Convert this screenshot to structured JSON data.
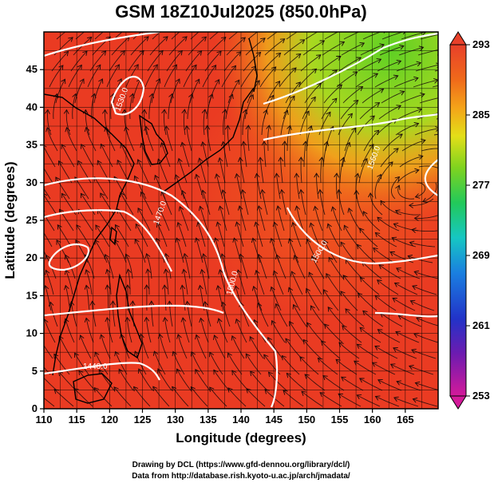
{
  "title": "GSM 18Z10Jul2025 (850.0hPa)",
  "x_axis": {
    "label": "Longitude (degrees)",
    "ticks": [
      "110",
      "115",
      "120",
      "125",
      "130",
      "135",
      "140",
      "145",
      "150",
      "155",
      "160",
      "165"
    ]
  },
  "y_axis": {
    "label": "Latitude  (degrees)",
    "ticks": [
      "0",
      "5",
      "10",
      "15",
      "20",
      "25",
      "30",
      "35",
      "40",
      "45"
    ]
  },
  "colorbar": {
    "ticks": [
      "293",
      "285",
      "277",
      "269",
      "261",
      "253"
    ],
    "colors": [
      "#d41a9a",
      "#6d1bb0",
      "#2233c8",
      "#1a7fe0",
      "#16c7c3",
      "#22c95a",
      "#7fd31f",
      "#e3df18",
      "#f4a419",
      "#ef6a1a",
      "#e8402a"
    ]
  },
  "contour_labels": [
    "1440.0",
    "1470.0",
    "1500.0",
    "1530.0",
    "1560.0",
    "1500.0"
  ],
  "credits": [
    "Drawing by DCL (https://www.gfd-dennou.org/library/dcl/)",
    "Data from http://database.rish.kyoto-u.ac.jp/arch/jmadata/"
  ],
  "chart_data": {
    "type": "heatmap",
    "title": "GSM 18Z10Jul2025 (850.0hPa)",
    "xlabel": "Longitude (degrees)",
    "ylabel": "Latitude  (degrees)",
    "xlim": [
      110,
      170
    ],
    "ylim": [
      0,
      50
    ],
    "x_ticks": [
      110,
      115,
      120,
      125,
      130,
      135,
      140,
      145,
      150,
      155,
      160,
      165
    ],
    "y_ticks": [
      0,
      5,
      10,
      15,
      20,
      25,
      30,
      35,
      40,
      45
    ],
    "colorbar_range": [
      253,
      293
    ],
    "colorbar_ticks": [
      293,
      285,
      277,
      269,
      261,
      253
    ],
    "grid": true,
    "overlays": [
      "temperature shading",
      "geopotential height contours",
      "wind streamlines",
      "coastlines"
    ]
  }
}
